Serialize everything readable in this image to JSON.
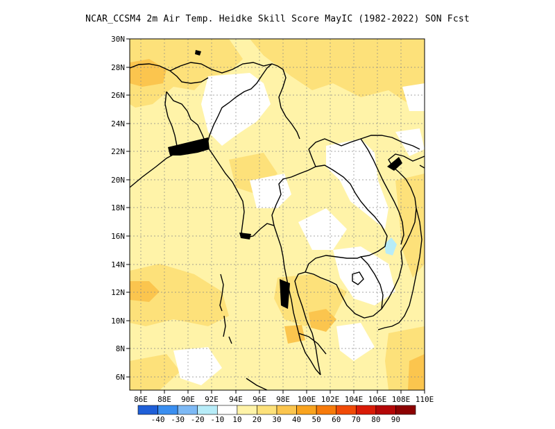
{
  "title": "NCAR_CCSM4 2m Air Temp. Heidke Skill Score MayIC (1982-2022) SON Fcst",
  "axes": {
    "lat_labels": [
      "30N",
      "28N",
      "26N",
      "24N",
      "22N",
      "20N",
      "18N",
      "16N",
      "14N",
      "12N",
      "10N",
      "8N",
      "6N"
    ],
    "lon_labels": [
      "86E",
      "88E",
      "90E",
      "92E",
      "94E",
      "96E",
      "98E",
      "100E",
      "102E",
      "104E",
      "106E",
      "108E",
      "110E"
    ]
  },
  "colorbar": {
    "colors": [
      "#1f5fd8",
      "#3a8ef0",
      "#7db9f5",
      "#b7ecf8",
      "#ffffff",
      "#fff3a8",
      "#fde17a",
      "#fbc54e",
      "#f9a31e",
      "#f77a0a",
      "#f14a06",
      "#d91b07",
      "#b40707",
      "#8c0202"
    ],
    "labels": [
      "-40",
      "-30",
      "-20",
      "-10",
      "10",
      "20",
      "30",
      "40",
      "50",
      "60",
      "70",
      "80",
      "90"
    ]
  },
  "chart_data": {
    "type": "heatmap",
    "title": "NCAR_CCSM4 2m Air Temp. Heidke Skill Score MayIC (1982-2022) SON Fcst",
    "x_range_deg_E": [
      85,
      110
    ],
    "y_range_deg_N": [
      5,
      30
    ],
    "grid": true,
    "colorbar_levels": [
      -40,
      -30,
      -20,
      -10,
      10,
      20,
      30,
      40,
      50,
      60,
      70,
      80,
      90
    ],
    "dominant_values": "mostly 10 to 30 over the domain, local 30-40 near 12N 86E and 10N 97E, 28N 86E; white (-10 to 10) patches over Myanmar north, Laos and Cambodia; -10 to -20 small patch near 15N 107E"
  }
}
